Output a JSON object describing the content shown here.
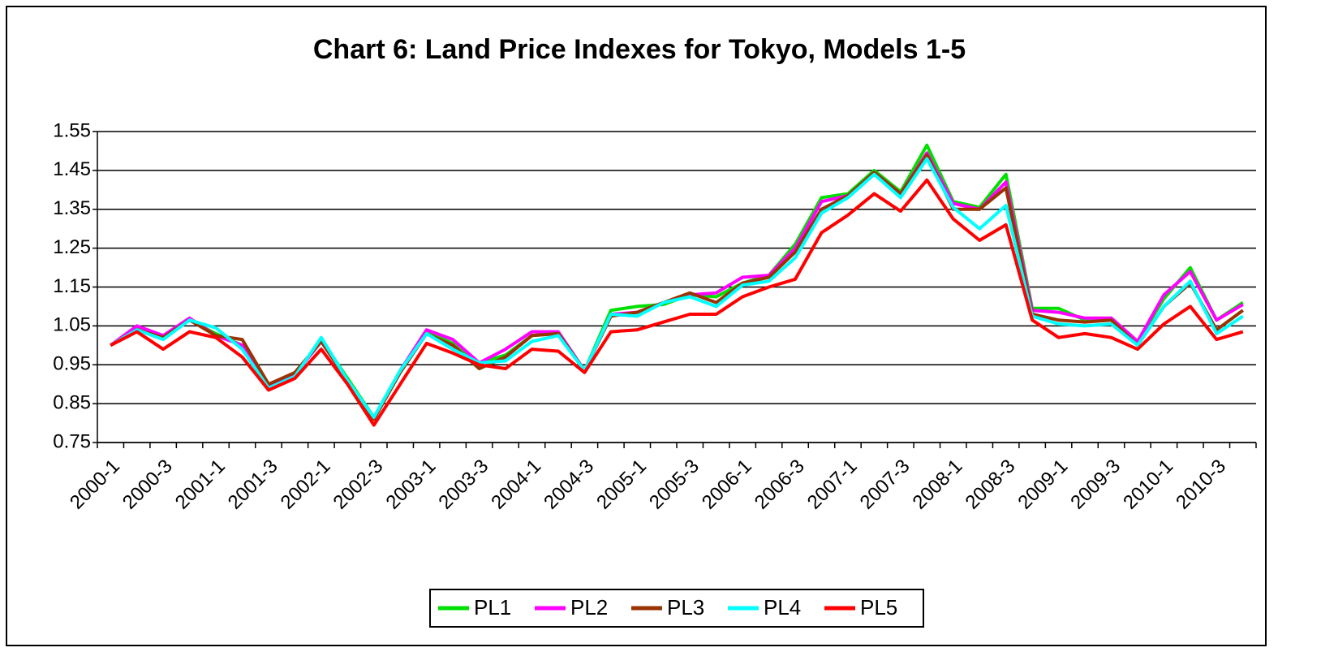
{
  "chart_data": {
    "type": "line",
    "title": "Chart 6: Land Price Indexes for Tokyo, Models 1-5",
    "categories": [
      "2000-1",
      null,
      "2000-3",
      null,
      "2001-1",
      null,
      "2001-3",
      null,
      "2002-1",
      null,
      "2002-3",
      null,
      "2003-1",
      null,
      "2003-3",
      null,
      "2004-1",
      null,
      "2004-3",
      null,
      "2005-1",
      null,
      "2005-3",
      null,
      "2006-1",
      null,
      "2006-3",
      null,
      "2007-1",
      null,
      "2007-3",
      null,
      "2008-1",
      null,
      "2008-3",
      null,
      "2009-1",
      null,
      "2009-3",
      null,
      "2010-1",
      null,
      "2010-3",
      null
    ],
    "ylim": [
      0.75,
      1.55
    ],
    "yticks": [
      0.75,
      0.85,
      0.95,
      1.05,
      1.15,
      1.25,
      1.35,
      1.45,
      1.55
    ],
    "grid": true,
    "legend": "bottom",
    "series": [
      {
        "name": "PL1",
        "color": "#00e000",
        "values": [
          1.0,
          1.045,
          1.02,
          1.065,
          1.03,
          1.0,
          0.895,
          0.925,
          1.015,
          0.915,
          0.815,
          0.935,
          1.035,
          1.005,
          0.955,
          0.975,
          1.025,
          1.03,
          0.935,
          1.09,
          1.1,
          1.105,
          1.13,
          1.125,
          1.16,
          1.18,
          1.26,
          1.38,
          1.39,
          1.45,
          1.395,
          1.515,
          1.37,
          1.355,
          1.44,
          1.095,
          1.095,
          1.065,
          1.07,
          1.01,
          1.12,
          1.2,
          1.065,
          1.11
        ]
      },
      {
        "name": "PL2",
        "color": "#ff00ff",
        "values": [
          1.0,
          1.05,
          1.025,
          1.07,
          1.025,
          1.0,
          0.895,
          0.925,
          1.01,
          0.91,
          0.81,
          0.935,
          1.04,
          1.015,
          0.955,
          0.99,
          1.035,
          1.035,
          0.935,
          1.08,
          1.085,
          1.11,
          1.13,
          1.135,
          1.175,
          1.18,
          1.25,
          1.37,
          1.385,
          1.445,
          1.39,
          1.495,
          1.365,
          1.35,
          1.42,
          1.09,
          1.085,
          1.07,
          1.07,
          1.01,
          1.13,
          1.19,
          1.065,
          1.105
        ]
      },
      {
        "name": "PL3",
        "color": "#993300",
        "values": [
          1.0,
          1.04,
          1.02,
          1.065,
          1.025,
          1.015,
          0.9,
          0.93,
          1.01,
          0.91,
          0.81,
          0.93,
          1.03,
          1.0,
          0.94,
          0.97,
          1.025,
          1.03,
          0.935,
          1.075,
          1.085,
          1.11,
          1.135,
          1.11,
          1.16,
          1.175,
          1.24,
          1.35,
          1.385,
          1.445,
          1.39,
          1.49,
          1.35,
          1.35,
          1.405,
          1.08,
          1.065,
          1.06,
          1.065,
          1.0,
          1.1,
          1.16,
          1.04,
          1.09
        ]
      },
      {
        "name": "PL4",
        "color": "#00ffff",
        "values": [
          1.0,
          1.04,
          1.015,
          1.065,
          1.045,
          0.99,
          0.89,
          0.92,
          1.02,
          0.91,
          0.815,
          0.935,
          1.03,
          0.99,
          0.955,
          0.96,
          1.01,
          1.025,
          0.935,
          1.08,
          1.075,
          1.11,
          1.125,
          1.1,
          1.155,
          1.165,
          1.225,
          1.34,
          1.38,
          1.44,
          1.38,
          1.48,
          1.355,
          1.3,
          1.36,
          1.075,
          1.055,
          1.05,
          1.055,
          1.0,
          1.1,
          1.165,
          1.03,
          1.075
        ]
      },
      {
        "name": "PL5",
        "color": "#ff0000",
        "values": [
          1.0,
          1.035,
          0.99,
          1.035,
          1.02,
          0.97,
          0.885,
          0.915,
          0.99,
          0.9,
          0.795,
          0.9,
          1.005,
          0.98,
          0.95,
          0.94,
          0.99,
          0.985,
          0.93,
          1.035,
          1.04,
          1.06,
          1.08,
          1.08,
          1.125,
          1.15,
          1.17,
          1.29,
          1.335,
          1.39,
          1.345,
          1.425,
          1.325,
          1.27,
          1.31,
          1.065,
          1.02,
          1.03,
          1.02,
          0.99,
          1.055,
          1.1,
          1.015,
          1.035
        ]
      }
    ]
  }
}
